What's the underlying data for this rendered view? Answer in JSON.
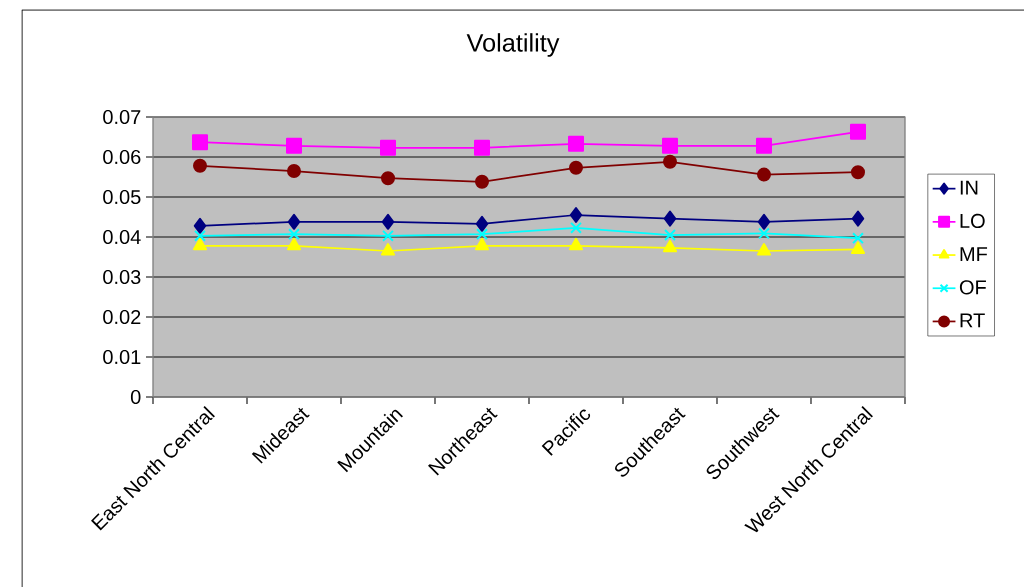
{
  "chart_data": {
    "type": "line",
    "title": "Volatility",
    "categories": [
      "East North Central",
      "Mideast",
      "Mountain",
      "Northeast",
      "Pacific",
      "Southeast",
      "Southwest",
      "West North Central"
    ],
    "series": [
      {
        "name": "IN",
        "color": "#000080",
        "marker": "diamond",
        "values": [
          0.0428,
          0.0438,
          0.0438,
          0.0433,
          0.0455,
          0.0446,
          0.0438,
          0.0446
        ]
      },
      {
        "name": "LO",
        "color": "#ff00ff",
        "marker": "square",
        "values": [
          0.0637,
          0.0628,
          0.0623,
          0.0623,
          0.0633,
          0.0628,
          0.0628,
          0.0663
        ]
      },
      {
        "name": "MF",
        "color": "#ffff00",
        "marker": "triangle",
        "values": [
          0.0378,
          0.0378,
          0.0365,
          0.0378,
          0.0378,
          0.0373,
          0.0365,
          0.0369
        ]
      },
      {
        "name": "OF",
        "color": "#00ffff",
        "marker": "cross",
        "values": [
          0.0403,
          0.0407,
          0.0403,
          0.0407,
          0.0423,
          0.0405,
          0.0409,
          0.0397
        ]
      },
      {
        "name": "RT",
        "color": "#800000",
        "marker": "circle",
        "values": [
          0.0578,
          0.0565,
          0.0547,
          0.0538,
          0.0573,
          0.0588,
          0.0556,
          0.0562
        ]
      }
    ],
    "ylim": [
      0,
      0.07
    ],
    "yticks": [
      0,
      0.01,
      0.02,
      0.03,
      0.04,
      0.05,
      0.06,
      0.07
    ],
    "grid": "y",
    "legend": "right",
    "line_style": "solid"
  }
}
